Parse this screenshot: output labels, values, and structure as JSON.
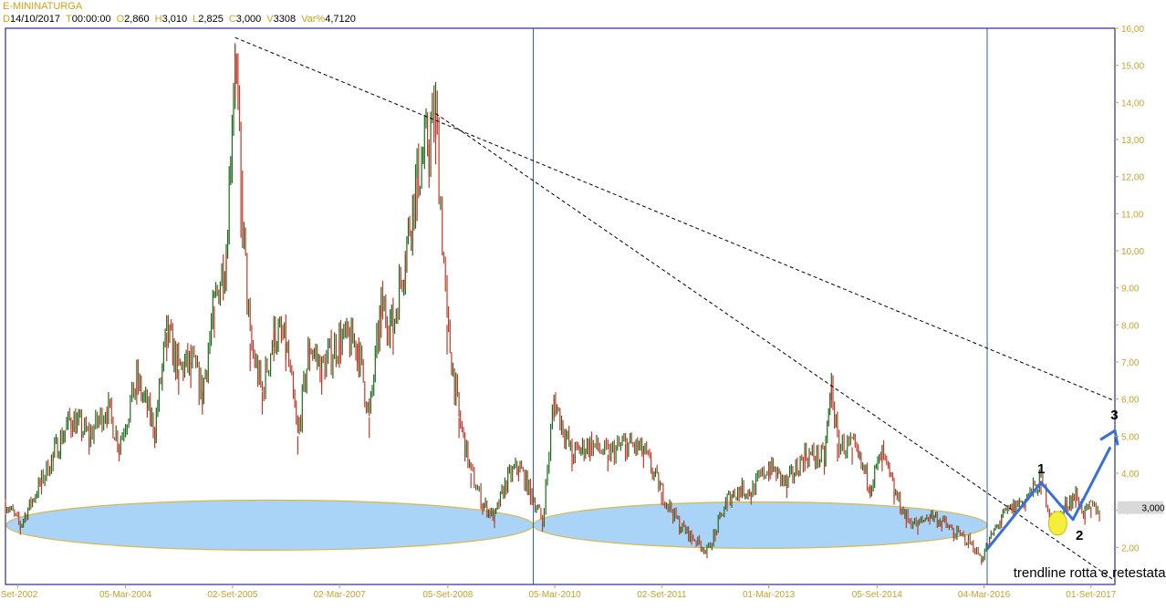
{
  "header": {
    "title": "E-MININATURGA",
    "ohlc": [
      {
        "key": "D",
        "value": "14/10/2017"
      },
      {
        "key": "T",
        "value": "00:00:00"
      },
      {
        "key": "O",
        "value": "2,860"
      },
      {
        "key": "H",
        "value": "3,010"
      },
      {
        "key": "L",
        "value": "2,825"
      },
      {
        "key": "C",
        "value": "3,000"
      },
      {
        "key": "V",
        "value": "3308"
      },
      {
        "key": "Var%",
        "value": "4,7120"
      }
    ]
  },
  "colors": {
    "up": "#1a6b1a",
    "down": "#c0392b",
    "axis_text": "#c9a227",
    "frame": "#000080",
    "vline": "#2e5fa8",
    "ellipse_fill": "#a9d4f7",
    "ellipse_stroke": "#d9b84c",
    "arrow": "#3a6fd8",
    "highlight": "#f5ee3a"
  },
  "chart_data": {
    "type": "line",
    "title": "E-MININATURGA",
    "x_unit": "date",
    "xlim": [
      "2002-07-01",
      "2018-01-01"
    ],
    "ylim": [
      1.0,
      16.0
    ],
    "y_scale": "linear",
    "grid": false,
    "y_ticks": [
      "2,00",
      "3,00",
      "4,00",
      "5,00",
      "6,00",
      "7,00",
      "8,00",
      "9,00",
      "10,00",
      "11,00",
      "12,00",
      "13,00",
      "14,00",
      "15,00",
      "16,00"
    ],
    "x_ticks": [
      {
        "date": "2002-09-01",
        "label": "-Set-2002"
      },
      {
        "date": "2004-03-05",
        "label": "05-Mar-2004"
      },
      {
        "date": "2005-09-02",
        "label": "02-Set-2005"
      },
      {
        "date": "2007-03-02",
        "label": "02-Mar-2007"
      },
      {
        "date": "2008-09-05",
        "label": "05-Set-2008"
      },
      {
        "date": "2010-03-05",
        "label": "05-Mar-2010"
      },
      {
        "date": "2011-09-02",
        "label": "02-Set-2011"
      },
      {
        "date": "2013-03-01",
        "label": "01-Mar-2013"
      },
      {
        "date": "2014-09-05",
        "label": "05-Set-2014"
      },
      {
        "date": "2016-03-04",
        "label": "04-Mar-2016"
      },
      {
        "date": "2017-09-01",
        "label": "01-Set-2017"
      }
    ],
    "last_price": "3,000",
    "series": [
      {
        "x": [
          "2002-07-01",
          "2002-09-15",
          "2003-01-01",
          "2003-03-01",
          "2003-06-01",
          "2003-09-01",
          "2003-12-01",
          "2004-02-01",
          "2004-05-01",
          "2004-08-01",
          "2004-10-01",
          "2004-12-01",
          "2005-02-01",
          "2005-04-01",
          "2005-06-01",
          "2005-08-01",
          "2005-09-15",
          "2005-10-15",
          "2005-12-01",
          "2006-02-01",
          "2006-04-01",
          "2006-06-01",
          "2006-08-01",
          "2006-10-01",
          "2006-12-01",
          "2007-03-01",
          "2007-06-01",
          "2007-08-01",
          "2007-10-01",
          "2007-12-01",
          "2008-02-01",
          "2008-04-01",
          "2008-06-01",
          "2008-07-05",
          "2008-09-01",
          "2008-11-01",
          "2009-01-01",
          "2009-03-01",
          "2009-05-01",
          "2009-07-01",
          "2009-09-01",
          "2009-11-01",
          "2010-01-01",
          "2010-03-01",
          "2010-06-01",
          "2010-09-01",
          "2010-12-01",
          "2011-03-01",
          "2011-06-01",
          "2011-09-01",
          "2011-12-01",
          "2012-02-01",
          "2012-04-20",
          "2012-06-01",
          "2012-08-01",
          "2012-10-01",
          "2012-12-01",
          "2013-03-01",
          "2013-06-01",
          "2013-09-01",
          "2013-12-10",
          "2014-01-15",
          "2014-02-15",
          "2014-05-01",
          "2014-08-01",
          "2014-10-01",
          "2014-12-01",
          "2015-02-01",
          "2015-04-01",
          "2015-06-01",
          "2015-08-01",
          "2015-10-01",
          "2015-12-15",
          "2016-02-20",
          "2016-04-01",
          "2016-06-01",
          "2016-08-01",
          "2016-10-01",
          "2016-12-20",
          "2017-02-01",
          "2017-03-15",
          "2017-05-01",
          "2017-06-15",
          "2017-08-01",
          "2017-09-01",
          "2017-10-14"
        ],
        "values": [
          3.2,
          2.6,
          3.8,
          4.5,
          5.5,
          5.0,
          5.8,
          4.8,
          6.5,
          5.2,
          7.8,
          6.8,
          7.0,
          6.2,
          8.5,
          10.0,
          15.6,
          11.5,
          7.5,
          6.2,
          7.8,
          7.5,
          5.0,
          7.5,
          6.8,
          7.6,
          7.5,
          5.5,
          8.5,
          8.0,
          10.0,
          12.0,
          13.0,
          13.7,
          8.0,
          5.5,
          4.0,
          3.2,
          2.8,
          3.8,
          4.2,
          3.5,
          2.7,
          6.0,
          4.5,
          4.8,
          4.5,
          4.8,
          4.6,
          3.5,
          2.6,
          2.3,
          1.9,
          2.4,
          3.3,
          3.6,
          3.5,
          4.2,
          3.7,
          4.5,
          4.4,
          6.4,
          4.8,
          4.7,
          3.7,
          4.5,
          3.5,
          2.8,
          2.6,
          2.9,
          2.7,
          2.4,
          2.2,
          1.7,
          2.2,
          2.8,
          3.1,
          3.3,
          3.8,
          3.0,
          2.7,
          3.2,
          3.4,
          2.9,
          3.1,
          3.0
        ]
      }
    ],
    "annotations": {
      "trendlines": [
        {
          "points": [
            [
              "2005-09-15",
              15.75
            ],
            [
              "2018-01-01",
              5.95
            ]
          ]
        },
        {
          "points": [
            [
              "2008-07-05",
              13.7
            ],
            [
              "2018-01-01",
              1.1
            ]
          ]
        }
      ],
      "vertical_lines": [
        "2009-11-15",
        "2016-03-20"
      ],
      "support_zones": [
        {
          "x": [
            "2002-07-05",
            "2009-11-15"
          ],
          "y": [
            1.95,
            3.3
          ],
          "center_y": 2.6
        },
        {
          "x": [
            "2009-11-15",
            "2016-03-20"
          ],
          "y": [
            2.0,
            3.25
          ],
          "center_y": 2.6
        }
      ],
      "wave_path": [
        [
          "2016-03-20",
          1.95
        ],
        [
          "2016-12-20",
          3.75
        ],
        [
          "2017-06-01",
          2.75
        ],
        [
          "2018-01-01",
          5.0
        ]
      ],
      "highlight": {
        "x": "2017-03-15",
        "y": 2.65
      },
      "labels": [
        {
          "text": "1",
          "x": "2016-12-01",
          "y": 4.0
        },
        {
          "text": "2",
          "x": "2017-06-15",
          "y": 2.2
        },
        {
          "text": "3",
          "x": "2017-12-10",
          "y": 5.45
        },
        {
          "text": "trendline rotta e retestata",
          "x": "2016-08-01",
          "y": 1.2
        }
      ]
    }
  }
}
